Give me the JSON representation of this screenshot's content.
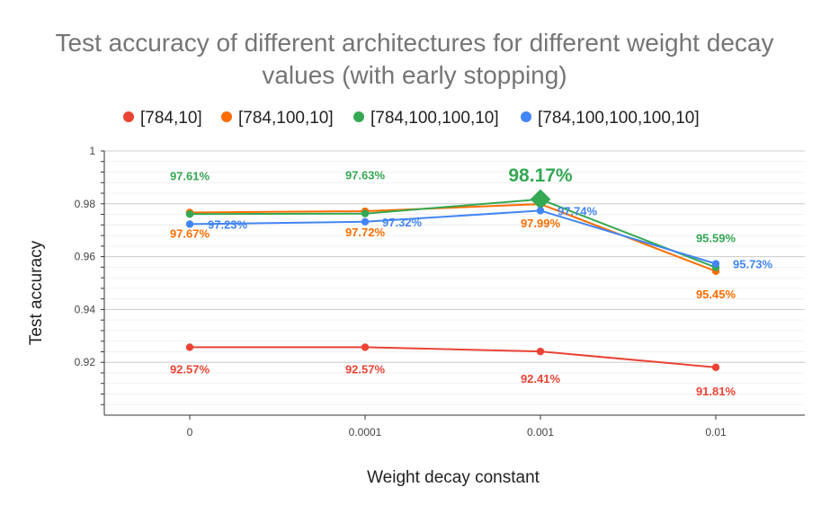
{
  "chart_data": {
    "type": "line",
    "title": "Test accuracy of different architectures for different weight decay values (with early stopping)",
    "title_lines": [
      "Test accuracy of different architectures for different weight decay",
      "values (with early stopping)"
    ],
    "xlabel": "Weight decay constant",
    "ylabel": "Test accuracy",
    "categories": [
      "0",
      "0.0001",
      "0.001",
      "0.01"
    ],
    "ylim": [
      0.9,
      1
    ],
    "yticks": [
      0.92,
      0.94,
      0.96,
      0.98,
      1
    ],
    "ytick_labels": [
      "0.92",
      "0.94",
      "0.96",
      "0.98",
      "1"
    ],
    "grid": true,
    "legend_position": "top",
    "series": [
      {
        "name": "[784,10]",
        "color": "#ea4335",
        "values": [
          0.9257,
          0.9257,
          0.9241,
          0.9181
        ],
        "labels": [
          "92.57%",
          "92.57%",
          "92.41%",
          "91.81%"
        ]
      },
      {
        "name": "[784,100,10]",
        "color": "#ff6d01",
        "values": [
          0.9767,
          0.9772,
          0.9799,
          0.9545
        ],
        "labels": [
          "97.67%",
          "97.72%",
          "97.99%",
          "95.45%"
        ]
      },
      {
        "name": "[784,100,100,10]",
        "color": "#34a853",
        "values": [
          0.9761,
          0.9763,
          0.9817,
          0.9559
        ],
        "labels": [
          "97.61%",
          "97.63%",
          "98.17%",
          "95.59%"
        ],
        "highlight_index": 2
      },
      {
        "name": "[784,100,100,100,10]",
        "color": "#4285f4",
        "values": [
          0.9723,
          0.9732,
          0.9774,
          0.9573
        ],
        "labels": [
          "97.23%",
          "97.32%",
          "97.74%",
          "95.73%"
        ]
      }
    ]
  }
}
